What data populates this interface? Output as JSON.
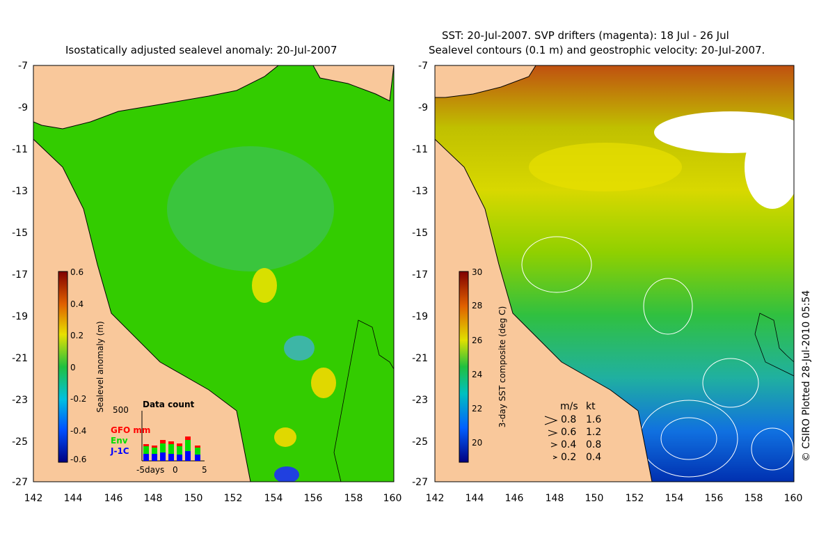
{
  "left_map": {
    "title": "Isostatically adjusted sealevel anomaly: 20-Jul-2007",
    "x_ticks": [
      "142",
      "144",
      "146",
      "148",
      "150",
      "152",
      "154",
      "156",
      "158",
      "160"
    ],
    "y_ticks": [
      "-7",
      "-9",
      "-11",
      "-13",
      "-15",
      "-17",
      "-19",
      "-21",
      "-23",
      "-25",
      "-27"
    ],
    "colorbar": {
      "label": "Sealevel anomaly (m)",
      "ticks": [
        "0.6",
        "0.4",
        "0.2",
        "0",
        "-0.2",
        "-0.4",
        "-0.6"
      ],
      "range": [
        -0.6,
        0.6
      ]
    },
    "data_count": {
      "title": "Data count",
      "ymax_label": "500",
      "x_labels": [
        "-5days",
        "0",
        "5"
      ],
      "legend": [
        {
          "name": "GFO mm",
          "color": "#ff0000"
        },
        {
          "name": "Env",
          "color": "#00dd00"
        },
        {
          "name": "J-1C",
          "color": "#0000ff"
        }
      ]
    }
  },
  "right_map": {
    "title_line1": "SST: 20-Jul-2007. SVP drifters (magenta): 18 Jul - 26 Jul",
    "title_line2": "Sealevel contours (0.1 m) and geostrophic velocity: 20-Jul-2007.",
    "x_ticks": [
      "142",
      "144",
      "146",
      "148",
      "150",
      "152",
      "154",
      "156",
      "158",
      "160"
    ],
    "y_ticks": [
      "-7",
      "-9",
      "-11",
      "-13",
      "-15",
      "-17",
      "-19",
      "-21",
      "-23",
      "-25",
      "-27"
    ],
    "colorbar": {
      "label": "3-day SST composite (deg C)",
      "ticks": [
        "30",
        "28",
        "26",
        "24",
        "22",
        "20"
      ],
      "range": [
        19,
        30
      ]
    },
    "velocity_legend": {
      "header_ms": "m/s",
      "header_kt": "kt",
      "rows": [
        {
          "ms": "0.8",
          "kt": "1.6"
        },
        {
          "ms": "0.6",
          "kt": "1.2"
        },
        {
          "ms": "0.4",
          "kt": "0.8"
        },
        {
          "ms": "0.2",
          "kt": "0.4"
        }
      ]
    },
    "credit": "© CSIRO Plotted 28-Jul-2010 05:54"
  },
  "colors": {
    "land": "#f9c89b",
    "sea_green": "#33cc00",
    "coast": "#000000"
  }
}
